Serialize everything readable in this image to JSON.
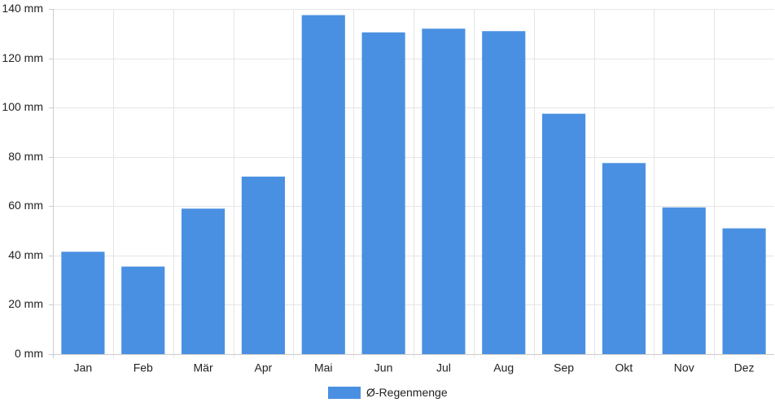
{
  "colors": {
    "bar": "#4a90e2",
    "grid": "#e5e5e5",
    "axis": "#cccccc",
    "text": "#222222"
  },
  "chart_data": {
    "type": "bar",
    "categories": [
      "Jan",
      "Feb",
      "Mär",
      "Apr",
      "Mai",
      "Jun",
      "Jul",
      "Aug",
      "Sep",
      "Okt",
      "Nov",
      "Dez"
    ],
    "series": [
      {
        "name": "Ø-Regenmenge",
        "values": [
          41.5,
          35.5,
          59,
          72,
          137.5,
          130.5,
          132,
          131,
          97.5,
          77.5,
          59.5,
          51
        ]
      }
    ],
    "ylim": [
      0,
      140
    ],
    "yticks": [
      0,
      20,
      40,
      60,
      80,
      100,
      120,
      140
    ],
    "ytick_labels": [
      "0 mm",
      "20 mm",
      "40 mm",
      "60 mm",
      "80 mm",
      "100 mm",
      "120 mm",
      "140 mm"
    ],
    "grid": true,
    "legend_position": "bottom-center"
  }
}
